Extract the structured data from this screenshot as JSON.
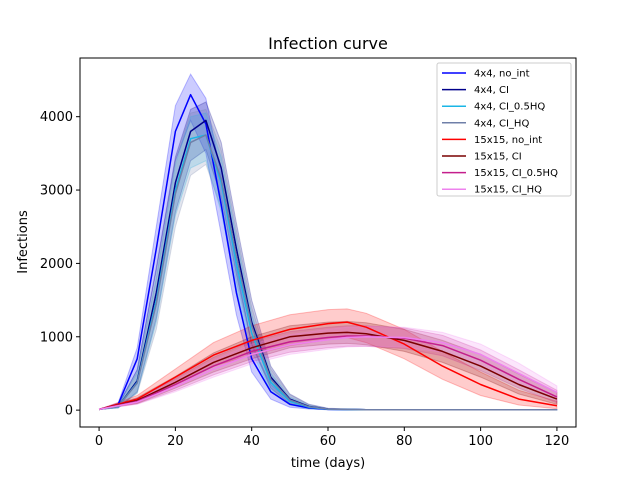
{
  "chart_data": {
    "type": "line",
    "title": "Infection curve",
    "xlabel": "time (days)",
    "ylabel": "Infections",
    "xlim": [
      -5,
      125
    ],
    "ylim": [
      -230,
      4800
    ],
    "xticks": [
      0,
      20,
      40,
      60,
      80,
      100,
      120
    ],
    "yticks": [
      0,
      1000,
      2000,
      3000,
      4000
    ],
    "grid": false,
    "legend_position": "top-right",
    "series": [
      {
        "name": "4x4, no_int",
        "color": "#0000ff",
        "x": [
          0,
          5,
          10,
          15,
          20,
          24,
          28,
          32,
          36,
          40,
          45,
          50,
          55,
          60,
          70,
          80,
          100,
          120
        ],
        "y": [
          10,
          80,
          700,
          2200,
          3800,
          4300,
          3900,
          2800,
          1600,
          700,
          250,
          80,
          30,
          10,
          5,
          5,
          5,
          5
        ],
        "lower": [
          10,
          60,
          550,
          1900,
          3400,
          3950,
          3500,
          2400,
          1300,
          520,
          150,
          40,
          15,
          5,
          2,
          2,
          2,
          2
        ],
        "upper": [
          10,
          100,
          850,
          2500,
          4150,
          4580,
          4250,
          3200,
          1950,
          900,
          350,
          120,
          45,
          15,
          8,
          8,
          8,
          8
        ]
      },
      {
        "name": "4x4, CI",
        "color": "#00008b",
        "x": [
          0,
          5,
          10,
          15,
          20,
          24,
          28,
          32,
          36,
          40,
          45,
          50,
          55,
          60,
          70,
          80,
          100,
          120
        ],
        "y": [
          10,
          50,
          400,
          1600,
          3100,
          3800,
          3950,
          3300,
          2200,
          1200,
          450,
          150,
          50,
          15,
          5,
          5,
          5,
          5
        ],
        "lower": [
          10,
          30,
          250,
          1250,
          2700,
          3400,
          3550,
          2900,
          1850,
          900,
          300,
          90,
          25,
          8,
          2,
          2,
          2,
          2
        ],
        "upper": [
          10,
          70,
          550,
          1950,
          3450,
          4100,
          4200,
          3650,
          2550,
          1500,
          600,
          220,
          80,
          25,
          8,
          8,
          8,
          8
        ]
      },
      {
        "name": "4x4, CI_0.5HQ",
        "color": "#1ab6e6",
        "x": [
          0,
          5,
          10,
          15,
          20,
          24,
          28,
          32,
          36,
          40,
          45,
          50,
          55,
          60,
          70,
          80,
          100,
          120
        ],
        "y": [
          10,
          50,
          380,
          1500,
          3000,
          3700,
          3750,
          3100,
          2000,
          1050,
          380,
          120,
          40,
          12,
          5,
          5,
          5,
          5
        ],
        "lower": [
          10,
          30,
          240,
          1200,
          2650,
          3300,
          3400,
          2700,
          1650,
          800,
          260,
          70,
          20,
          6,
          2,
          2,
          2,
          2
        ],
        "upper": [
          10,
          70,
          520,
          1800,
          3350,
          4000,
          4050,
          3450,
          2350,
          1300,
          500,
          180,
          65,
          20,
          8,
          8,
          8,
          8
        ]
      },
      {
        "name": "4x4, CI_HQ",
        "color": "#6f7fa8",
        "x": [
          0,
          5,
          10,
          15,
          20,
          24,
          28,
          32,
          36,
          40,
          45,
          50,
          55,
          60,
          70,
          80,
          100,
          120
        ],
        "y": [
          10,
          50,
          370,
          1450,
          2950,
          3650,
          3750,
          3150,
          2100,
          1150,
          420,
          140,
          45,
          14,
          5,
          5,
          5,
          5
        ],
        "lower": [
          10,
          30,
          230,
          1100,
          2500,
          3200,
          3350,
          2750,
          1750,
          880,
          290,
          80,
          22,
          7,
          2,
          2,
          2,
          2
        ],
        "upper": [
          10,
          70,
          510,
          1800,
          3400,
          4050,
          4100,
          3550,
          2450,
          1400,
          560,
          210,
          75,
          22,
          8,
          8,
          8,
          8
        ]
      },
      {
        "name": "15x15, no_int",
        "color": "#ff0000",
        "x": [
          0,
          10,
          20,
          30,
          40,
          50,
          60,
          65,
          70,
          80,
          90,
          100,
          110,
          120
        ],
        "y": [
          10,
          150,
          450,
          750,
          950,
          1100,
          1180,
          1200,
          1130,
          900,
          600,
          350,
          150,
          60
        ],
        "lower": [
          10,
          100,
          350,
          600,
          750,
          880,
          960,
          990,
          920,
          700,
          420,
          200,
          70,
          20
        ],
        "upper": [
          10,
          200,
          560,
          920,
          1150,
          1300,
          1370,
          1380,
          1320,
          1100,
          800,
          520,
          270,
          120
        ]
      },
      {
        "name": "15x15, CI",
        "color": "#7a0000",
        "x": [
          0,
          10,
          20,
          30,
          40,
          50,
          60,
          65,
          70,
          80,
          90,
          100,
          110,
          120
        ],
        "y": [
          10,
          130,
          380,
          650,
          850,
          1000,
          1050,
          1060,
          1040,
          950,
          800,
          600,
          350,
          150
        ],
        "lower": [
          10,
          90,
          300,
          520,
          700,
          850,
          900,
          910,
          890,
          800,
          650,
          450,
          220,
          80
        ],
        "upper": [
          10,
          170,
          460,
          780,
          1000,
          1150,
          1200,
          1210,
          1190,
          1100,
          950,
          760,
          490,
          240
        ]
      },
      {
        "name": "15x15, CI_0.5HQ",
        "color": "#c41e8c",
        "x": [
          0,
          10,
          20,
          30,
          40,
          50,
          60,
          65,
          70,
          80,
          90,
          100,
          110,
          120
        ],
        "y": [
          10,
          120,
          350,
          600,
          800,
          930,
          990,
          1010,
          1010,
          980,
          880,
          680,
          420,
          180
        ],
        "lower": [
          10,
          85,
          270,
          480,
          660,
          790,
          850,
          870,
          870,
          840,
          740,
          540,
          300,
          100
        ],
        "upper": [
          10,
          160,
          430,
          720,
          940,
          1070,
          1130,
          1150,
          1150,
          1120,
          1020,
          820,
          550,
          270
        ]
      },
      {
        "name": "15x15, CI_HQ",
        "color": "#ee82ee",
        "x": [
          0,
          10,
          20,
          30,
          40,
          50,
          60,
          65,
          70,
          80,
          90,
          100,
          110,
          120
        ],
        "y": [
          10,
          110,
          320,
          560,
          760,
          890,
          960,
          990,
          1000,
          990,
          920,
          760,
          500,
          240
        ],
        "lower": [
          10,
          80,
          250,
          450,
          630,
          760,
          830,
          860,
          870,
          860,
          790,
          620,
          370,
          140
        ],
        "upper": [
          10,
          150,
          400,
          680,
          900,
          1030,
          1100,
          1130,
          1140,
          1130,
          1060,
          900,
          640,
          330
        ]
      }
    ]
  }
}
